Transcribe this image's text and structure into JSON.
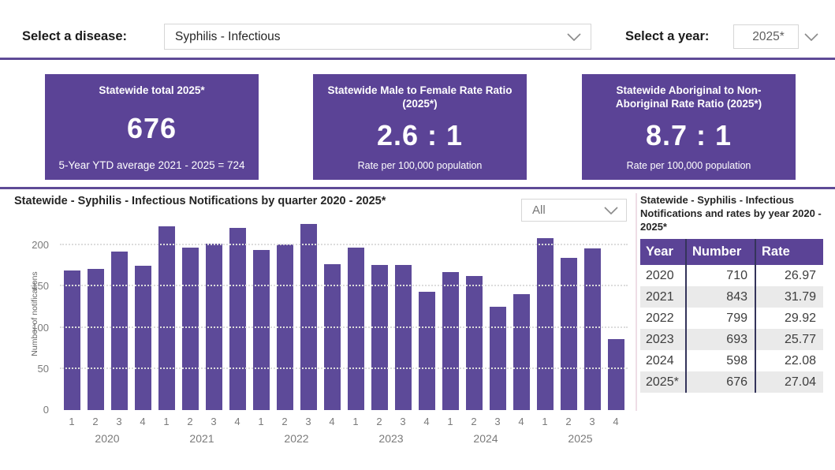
{
  "header": {
    "disease_label": "Select a disease:",
    "disease_value": "Syphilis - Infectious",
    "year_label": "Select a year:",
    "year_value": "2025*"
  },
  "kpi_cards": [
    {
      "title": "Statewide total 2025*",
      "value": "676",
      "subtitle": "5-Year YTD average 2021 - 2025 = 724"
    },
    {
      "title": "Statewide Male to Female Rate Ratio (2025*)",
      "value": "2.6 : 1",
      "subtitle": "Rate per 100,000 population"
    },
    {
      "title": "Statewide Aboriginal to Non-Aboriginal Rate Ratio (2025*)",
      "value": "8.7 : 1",
      "subtitle": "Rate per 100,000 population"
    }
  ],
  "chart": {
    "title": "Statewide - Syphilis - Infectious Notifications by quarter 2020 - 2025*",
    "filter_value": "All"
  },
  "chart_data": {
    "type": "bar",
    "title": "Statewide - Syphilis - Infectious Notifications by quarter 2020 - 2025*",
    "xlabel": "",
    "ylabel": "Number of notifications",
    "ylim": [
      0,
      230
    ],
    "yticks": [
      0,
      50,
      100,
      150,
      200
    ],
    "grid": "dotted horizontal",
    "bar_color": "#5d4a99",
    "groups": [
      {
        "year": "2020",
        "quarters": [
          "1",
          "2",
          "3",
          "4"
        ],
        "values": [
          170,
          172,
          193,
          175
        ]
      },
      {
        "year": "2021",
        "quarters": [
          "1",
          "2",
          "3",
          "4"
        ],
        "values": [
          223,
          197,
          202,
          221
        ]
      },
      {
        "year": "2022",
        "quarters": [
          "1",
          "2",
          "3",
          "4"
        ],
        "values": [
          195,
          201,
          226,
          177
        ]
      },
      {
        "year": "2023",
        "quarters": [
          "1",
          "2",
          "3",
          "4"
        ],
        "values": [
          197,
          176,
          176,
          144
        ]
      },
      {
        "year": "2024",
        "quarters": [
          "1",
          "2",
          "3",
          "4"
        ],
        "values": [
          168,
          163,
          126,
          141
        ]
      },
      {
        "year": "2025",
        "quarters": [
          "1",
          "2",
          "3",
          "4"
        ],
        "values": [
          209,
          185,
          196,
          86
        ]
      }
    ]
  },
  "table": {
    "title": "Statewide - Syphilis - Infectious Notifications and rates by year 2020 - 2025*",
    "columns": [
      "Year",
      "Number",
      "Rate"
    ],
    "rows": [
      [
        "2020",
        "710",
        "26.97"
      ],
      [
        "2021",
        "843",
        "31.79"
      ],
      [
        "2022",
        "799",
        "29.92"
      ],
      [
        "2023",
        "693",
        "25.77"
      ],
      [
        "2024",
        "598",
        "22.08"
      ],
      [
        "2025*",
        "676",
        "27.04"
      ]
    ]
  },
  "colors": {
    "accent_purple": "#5b4396",
    "bar_purple": "#5d4a99",
    "separator_purple": "#5e4a96",
    "table_alt_row": "#eaeaea"
  }
}
